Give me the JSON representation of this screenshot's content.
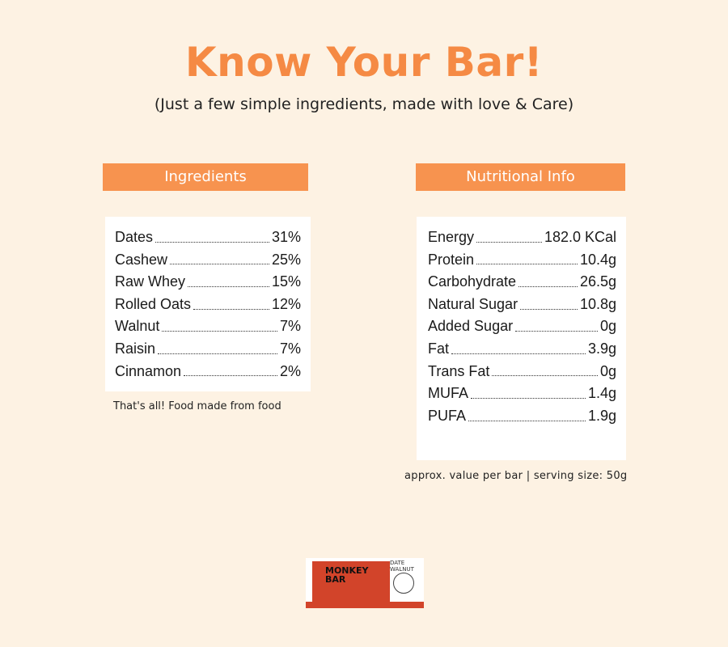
{
  "header": {
    "title": "Know Your Bar!",
    "subtitle": "(Just a few simple ingredients, made with love & Care)"
  },
  "ingredients": {
    "title": "Ingredients",
    "items": [
      {
        "name": "Dates",
        "value": "31%"
      },
      {
        "name": "Cashew",
        "value": "25%"
      },
      {
        "name": "Raw Whey",
        "value": "15%"
      },
      {
        "name": "Rolled Oats",
        "value": "12%"
      },
      {
        "name": "Walnut",
        "value": "7%"
      },
      {
        "name": "Raisin",
        "value": "7%"
      },
      {
        "name": "Cinnamon",
        "value": "2%"
      }
    ],
    "footnote": "That's all! Food made from food"
  },
  "nutrition": {
    "title": "Nutritional Info",
    "items": [
      {
        "name": "Energy",
        "value": "182.0 KCal"
      },
      {
        "name": "Protein",
        "value": "10.4g"
      },
      {
        "name": "Carbohydrate",
        "value": "26.5g"
      },
      {
        "name": "Natural Sugar",
        "value": "10.8g"
      },
      {
        "name": "Added Sugar",
        "value": "0g"
      },
      {
        "name": "Fat",
        "value": "3.9g"
      },
      {
        "name": "Trans Fat",
        "value": "0g"
      },
      {
        "name": "MUFA",
        "value": "1.4g"
      },
      {
        "name": "PUFA",
        "value": "1.9g"
      }
    ],
    "footnote": "approx. value per bar | serving size: 50g"
  },
  "product": {
    "brand_line1": "MONKEY",
    "brand_line2": "BAR",
    "flavor": "DATE WALNUT"
  },
  "colors": {
    "accent": "#f58a44",
    "header_bg": "#f7934f",
    "page_bg": "#fdf2e3"
  }
}
